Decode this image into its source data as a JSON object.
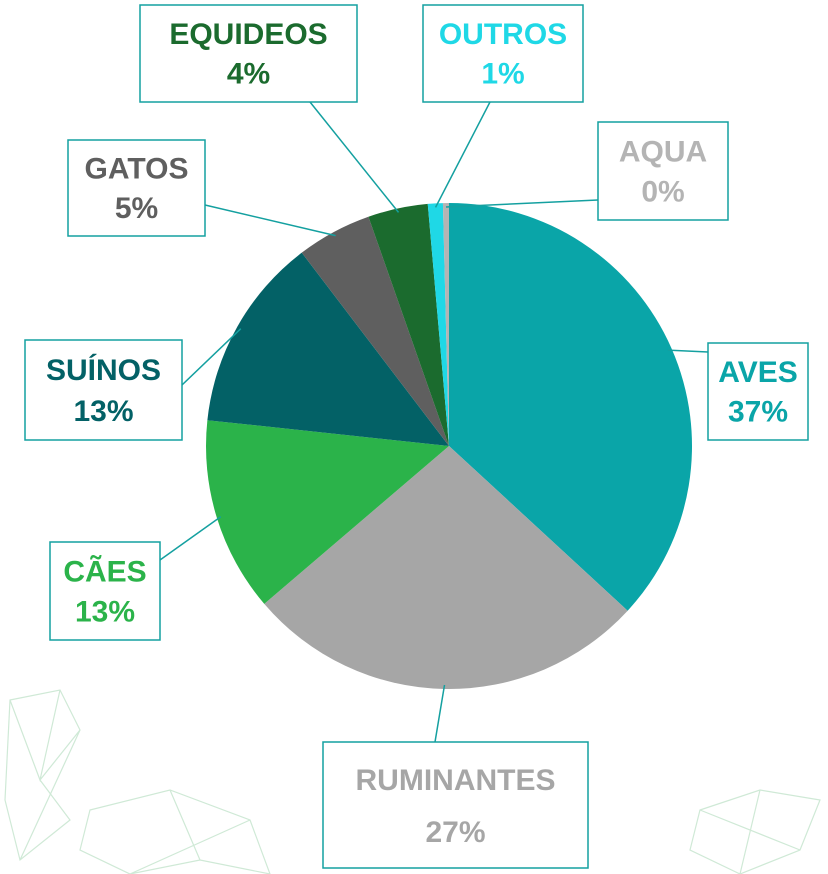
{
  "chart_data": {
    "type": "pie",
    "categories": [
      "AVES",
      "RUMINANTES",
      "CÃES",
      "SUÍNOS",
      "GATOS",
      "EQUIDEOS",
      "OUTROS",
      "AQUA"
    ],
    "values": [
      37,
      27,
      13,
      13,
      5,
      4,
      1,
      0.4
    ],
    "value_labels": [
      "37%",
      "27%",
      "13%",
      "13%",
      "5%",
      "4%",
      "1%",
      "0%"
    ],
    "colors": [
      "#0aa5a8",
      "#a6a6a6",
      "#2bb34a",
      "#036166",
      "#5f5f5f",
      "#1b6b2e",
      "#1fd8e6",
      "#b4b4b4"
    ]
  }
}
